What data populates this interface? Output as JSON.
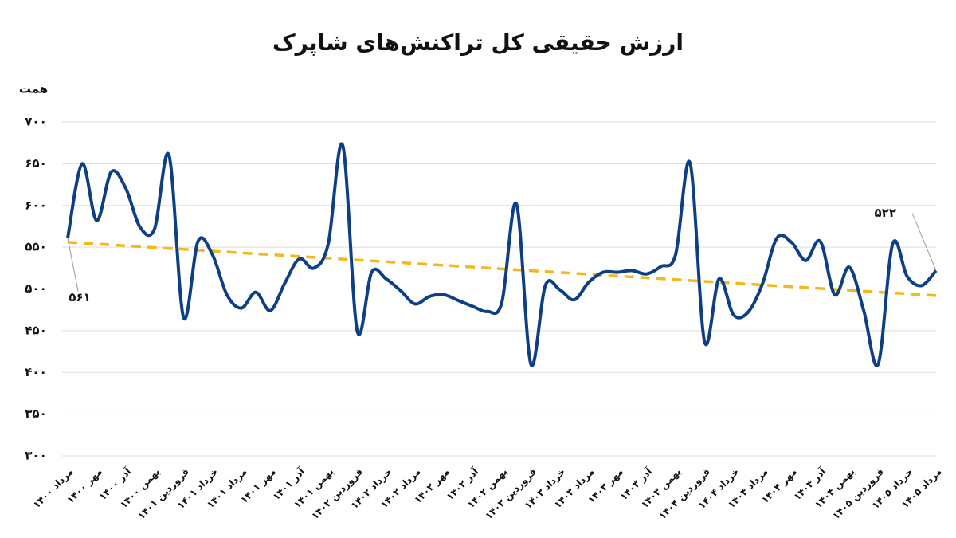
{
  "chart_data": {
    "type": "line",
    "title": "ارزش حقیقی کل تراکنش‌های شاپرک",
    "y_label": "همت",
    "categories": [
      "مرداد ۱۴۰۰",
      null,
      "مهر ۱۴۰۰",
      null,
      "آذر ۱۴۰۰",
      null,
      "بهمن ۱۴۰۰",
      null,
      "فروردین ۱۴۰۱",
      null,
      "خرداد ۱۴۰۱",
      null,
      "مرداد ۱۴۰۱",
      null,
      "مهر ۱۴۰۱",
      null,
      "آذر ۱۴۰۱",
      null,
      "بهمن ۱۴۰۱",
      null,
      "فروردین ۱۴۰۲",
      null,
      "خرداد ۱۴۰۲",
      null,
      "مرداد ۱۴۰۲",
      null,
      "مهر ۱۴۰۲",
      null,
      "آذر ۱۴۰۲",
      null,
      "بهمن ۱۴۰۲",
      null,
      "فروردین ۱۴۰۳",
      null,
      "خرداد ۱۴۰۳",
      null,
      "مرداد ۱۴۰۳",
      null,
      "مهر ۱۴۰۳",
      null,
      "آذر ۱۴۰۳",
      null,
      "بهمن ۱۴۰۳",
      null,
      "فروردین ۱۴۰۴",
      null,
      "خرداد ۱۴۰۴",
      null,
      "مرداد ۱۴۰۴",
      null,
      "مهر ۱۴۰۴",
      null,
      "آذر ۱۴۰۴",
      null,
      "بهمن ۱۴۰۴",
      null,
      "فروردین ۱۴۰۵",
      null,
      "خرداد ۱۴۰۵",
      null,
      "مرداد ۱۴۰۵"
    ],
    "series": [
      {
        "color": "#0d3f86",
        "values": [
          561,
          650,
          582,
          640,
          621,
          574,
          572,
          660,
          466,
          557,
          541,
          493,
          477,
          496,
          474,
          507,
          536,
          525,
          554,
          672,
          450,
          520,
          512,
          498,
          482,
          491,
          493,
          486,
          479,
          473,
          484,
          602,
          410,
          504,
          499,
          487,
          508,
          520,
          520,
          522,
          518,
          527,
          541,
          651,
          437,
          512,
          469,
          472,
          506,
          561,
          556,
          534,
          557,
          493,
          526,
          474,
          410,
          554,
          515,
          504,
          522
        ],
        "value_labels": [
          "۵۶۱",
          null,
          null,
          null,
          null,
          null,
          null,
          null,
          null,
          null,
          null,
          null,
          null,
          null,
          null,
          null,
          null,
          null,
          null,
          null,
          null,
          null,
          null,
          null,
          null,
          null,
          null,
          null,
          null,
          null,
          null,
          null,
          null,
          null,
          null,
          null,
          null,
          null,
          null,
          null,
          null,
          null,
          null,
          null,
          null,
          null,
          null,
          null,
          null,
          null,
          null,
          null,
          null,
          null,
          null,
          null,
          null,
          null,
          null,
          null,
          "۵۲۲"
        ]
      }
    ],
    "trend": {
      "color": "#f4b81c",
      "values": [
        556,
        492
      ]
    },
    "ylim": [
      300,
      700
    ],
    "yticks": [
      {
        "value": 300,
        "label": "۳۰۰"
      },
      {
        "value": 350,
        "label": "۳۵۰"
      },
      {
        "value": 400,
        "label": "۴۰۰"
      },
      {
        "value": 450,
        "label": "۴۵۰"
      },
      {
        "value": 500,
        "label": "۵۰۰"
      },
      {
        "value": 550,
        "label": "۵۵۰"
      },
      {
        "value": 600,
        "label": "۶۰۰"
      },
      {
        "value": 650,
        "label": "۶۵۰"
      },
      {
        "value": 700,
        "label": "۷۰۰"
      }
    ],
    "grid": true
  }
}
